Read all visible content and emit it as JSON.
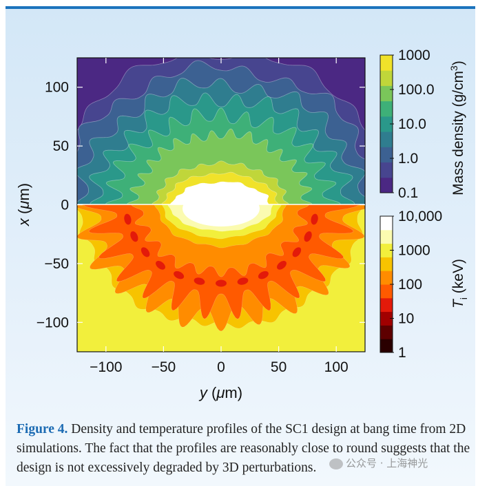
{
  "figure": {
    "caption_label": "Figure 4.",
    "caption_text": " Density and temperature profiles of the SC1 design at bang time from 2D simulations. The fact that the profiles are reasonably close to round suggests that the design is not excessively degraded by 3D perturbations."
  },
  "watermark": {
    "text": "公众号 · 上海神光"
  },
  "chart_data": {
    "type": "heatmap",
    "title": "",
    "xlabel": "y (μm)",
    "ylabel": "x (μm)",
    "xlim": [
      -125,
      125
    ],
    "ylim": [
      -125,
      125
    ],
    "xticks": [
      -100,
      -50,
      0,
      50,
      100
    ],
    "xtick_labels": [
      "−100",
      "−50",
      "0",
      "50",
      "100"
    ],
    "yticks": [
      100,
      50,
      0,
      -50,
      -100
    ],
    "ytick_labels": [
      "100",
      "50",
      "0",
      "−50",
      "−100"
    ],
    "panels": [
      {
        "name": "Mass density",
        "half": "upper",
        "colorbar_label": "Mass density (g/cm",
        "colorbar_label_sup": "3",
        "colorbar_label_end": ")",
        "colorbar_ticks": [
          "1000",
          "100.0",
          "10.0",
          "1.0",
          "0.1"
        ],
        "colors": [
          "#4b2883",
          "#47458f",
          "#3c6192",
          "#2f7d8f",
          "#2a988a",
          "#3eb078",
          "#7ac65a",
          "#c0d63a",
          "#f0e22a"
        ]
      },
      {
        "name": "Ion temperature",
        "half": "lower",
        "colorbar_label_main": "T",
        "colorbar_label_sub": "i",
        "colorbar_label_end": " (keV)",
        "colorbar_ticks": [
          "10,000",
          "1000",
          "100",
          "10",
          "1"
        ],
        "colors": [
          "#2a0000",
          "#5e0000",
          "#a10000",
          "#e31a0a",
          "#ff5a00",
          "#ff8c00",
          "#f7c300",
          "#f2ef3c",
          "#fbfbb0",
          "#ffffff"
        ]
      }
    ]
  }
}
